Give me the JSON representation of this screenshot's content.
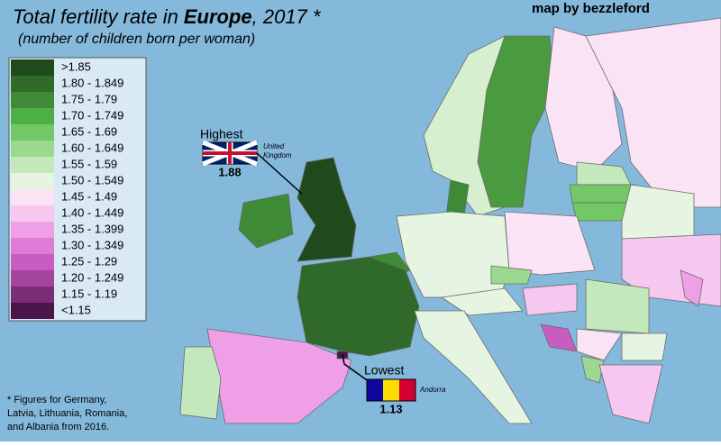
{
  "header": {
    "title": {
      "prefix": "Total fertility rate in",
      "bold": "Europe",
      "suffix": ", 2017 *"
    },
    "subtitle": "(number of children born per woman)",
    "credit": "map by bezzleford"
  },
  "legend": [
    {
      "label": ">1.85",
      "color": "#1f4a1c"
    },
    {
      "label": "1.80 - 1.849",
      "color": "#2f6a2a"
    },
    {
      "label": "1.75 - 1.79",
      "color": "#3e8a36"
    },
    {
      "label": "1.70 - 1.749",
      "color": "#4db044"
    },
    {
      "label": "1.65 - 1.69",
      "color": "#72c866"
    },
    {
      "label": "1.60 - 1.649",
      "color": "#9bd890"
    },
    {
      "label": "1.55 - 1.59",
      "color": "#c3e8bb"
    },
    {
      "label": "1.50 - 1.549",
      "color": "#e6f5e1"
    },
    {
      "label": "1.45 - 1.49",
      "color": "#fbe3f6"
    },
    {
      "label": "1.40 - 1.449",
      "color": "#f6c8ef"
    },
    {
      "label": "1.35 - 1.399",
      "color": "#ee9fe6"
    },
    {
      "label": "1.30 - 1.349",
      "color": "#e07ad7"
    },
    {
      "label": "1.25 - 1.29",
      "color": "#c95cc0"
    },
    {
      "label": "1.20 - 1.249",
      "color": "#a4449f"
    },
    {
      "label": "1.15 - 1.19",
      "color": "#7a2e78"
    },
    {
      "label": "<1.15",
      "color": "#4a1548"
    }
  ],
  "highest": {
    "heading": "Highest",
    "country": [
      "United",
      "Kingdom"
    ],
    "value": 1.88
  },
  "lowest": {
    "heading": "Lowest",
    "country": "Andorra",
    "value": 1.13
  },
  "footnote": [
    "* Figures for Germany,",
    "Latvia, Lithuania, Romania,",
    "and Albania from 2016."
  ]
}
